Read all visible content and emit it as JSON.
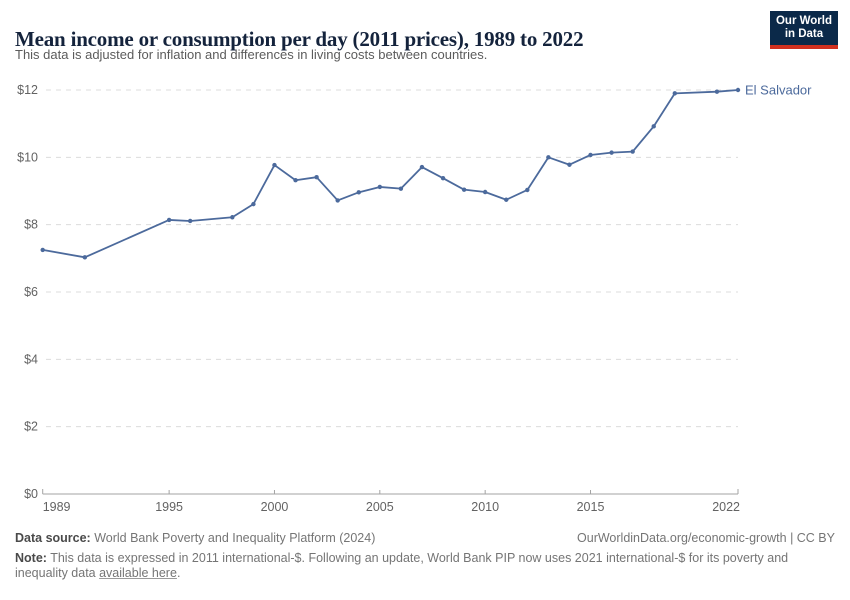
{
  "header": {
    "title": "Mean income or consumption per day (2011 prices), 1989 to 2022",
    "subtitle": "This data is adjusted for inflation and differences in living costs between countries.",
    "logo_line1": "Our World",
    "logo_line2": "in Data"
  },
  "chart_data": {
    "type": "line",
    "title": "Mean income or consumption per day (2011 prices), 1989 to 2022",
    "xlabel": "",
    "ylabel": "",
    "x_ticks": [
      1989,
      1995,
      2000,
      2005,
      2010,
      2015,
      2022
    ],
    "y_ticks": [
      0,
      2,
      4,
      6,
      8,
      10,
      12
    ],
    "y_tick_prefix": "$",
    "xlim": [
      1989,
      2022
    ],
    "ylim": [
      0,
      12
    ],
    "grid": "horizontal-dashed",
    "series": [
      {
        "name": "El Salvador",
        "color": "#4c6a9c",
        "points": [
          [
            1989,
            7.25
          ],
          [
            1991,
            7.03
          ],
          [
            1995,
            8.14
          ],
          [
            1996,
            8.11
          ],
          [
            1998,
            8.22
          ],
          [
            1999,
            8.61
          ],
          [
            2000,
            9.77
          ],
          [
            2001,
            9.32
          ],
          [
            2002,
            9.41
          ],
          [
            2003,
            8.72
          ],
          [
            2004,
            8.96
          ],
          [
            2005,
            9.12
          ],
          [
            2006,
            9.07
          ],
          [
            2007,
            9.71
          ],
          [
            2008,
            9.38
          ],
          [
            2009,
            9.04
          ],
          [
            2010,
            8.97
          ],
          [
            2011,
            8.74
          ],
          [
            2012,
            9.03
          ],
          [
            2013,
            10.0
          ],
          [
            2014,
            9.78
          ],
          [
            2015,
            10.07
          ],
          [
            2016,
            10.14
          ],
          [
            2017,
            10.17
          ],
          [
            2018,
            10.92
          ],
          [
            2019,
            11.9
          ],
          [
            2021,
            11.95
          ],
          [
            2022,
            12.0
          ]
        ]
      }
    ],
    "entity_label": "El Salvador"
  },
  "footer": {
    "datasource_label": "Data source:",
    "datasource_text": " World Bank Poverty and Inequality Platform (2024)",
    "attribution": "OurWorldinData.org/economic-growth | CC BY",
    "note_label": "Note:",
    "note_text": " This data is expressed in 2011 international-$. Following an update, World Bank PIP now uses 2021 international-$ for its poverty and inequality data ",
    "note_link": "available here",
    "note_suffix": "."
  },
  "colors": {
    "line": "#4c6a9c",
    "entity_label": "#4c6a9c",
    "gridline": "#dcdcdc",
    "axis": "#a3a3a3",
    "tick_text": "#636363",
    "logo_bg": "#0b2949",
    "logo_accent": "#d1301f"
  }
}
